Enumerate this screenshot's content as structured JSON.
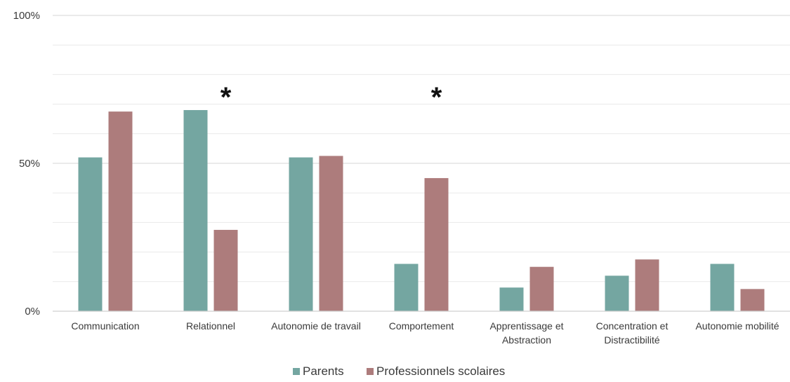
{
  "chart_data": {
    "type": "bar",
    "categories": [
      [
        "Communication"
      ],
      [
        "Relationnel"
      ],
      [
        "Autonomie de travail"
      ],
      [
        "Comportement"
      ],
      [
        "Apprentissage et",
        "Abstraction"
      ],
      [
        "Concentration et",
        "Distractibilité"
      ],
      [
        "Autonomie mobilité"
      ]
    ],
    "series": [
      {
        "name": "Parents",
        "color": "#74a6a1",
        "values": [
          52,
          68,
          52,
          16,
          8,
          12,
          16
        ]
      },
      {
        "name": "Professionnels scolaires",
        "color": "#ad7c7c",
        "values": [
          67.5,
          27.5,
          52.5,
          45,
          15,
          17.5,
          7.5
        ]
      }
    ],
    "y_ticks": [
      "0%",
      "50%",
      "100%"
    ],
    "y_tick_values": [
      0,
      50,
      100
    ],
    "ylim": [
      0,
      100
    ],
    "grid": true,
    "gridline_step": 10,
    "legend_position": "bottom",
    "annotations": [
      {
        "category_index": 1,
        "text": "*"
      },
      {
        "category_index": 3,
        "text": "*"
      }
    ]
  }
}
